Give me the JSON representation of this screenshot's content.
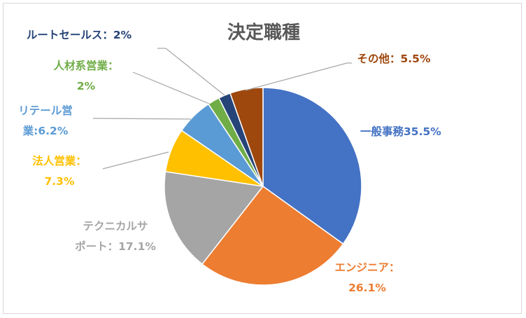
{
  "chart_data": {
    "type": "pie",
    "title": "決定職種",
    "slices": [
      {
        "key": "engineer_general",
        "value": 35.5,
        "color": "#4472C4",
        "label_lines": [
          "一般事務35.5%"
        ]
      },
      {
        "key": "engineer",
        "value": 26.1,
        "color": "#ED7D31",
        "label_lines": [
          "エンジニア：",
          "26.1%"
        ]
      },
      {
        "key": "tech_support",
        "value": 17.1,
        "color": "#A5A5A5",
        "label_lines": [
          "テクニカルサ",
          "ポート：17.1%"
        ]
      },
      {
        "key": "corporate_sales",
        "value": 7.3,
        "color": "#FFC000",
        "label_lines": [
          "法人営業：",
          "7.3%"
        ]
      },
      {
        "key": "retail_sales",
        "value": 6.2,
        "color": "#5B9BD5",
        "label_lines": [
          "リテール営",
          "業:6.2%"
        ]
      },
      {
        "key": "hr_sales",
        "value": 2,
        "color": "#70AD47",
        "label_lines": [
          "人材系営業：",
          "2%"
        ]
      },
      {
        "key": "route_sales",
        "value": 2,
        "color": "#264478",
        "label_lines": [
          "ルートセールス：2%"
        ]
      },
      {
        "key": "other",
        "value": 5.5,
        "color": "#9E480E",
        "label_lines": [
          "その他：5.5%"
        ]
      }
    ],
    "legend": "none"
  }
}
